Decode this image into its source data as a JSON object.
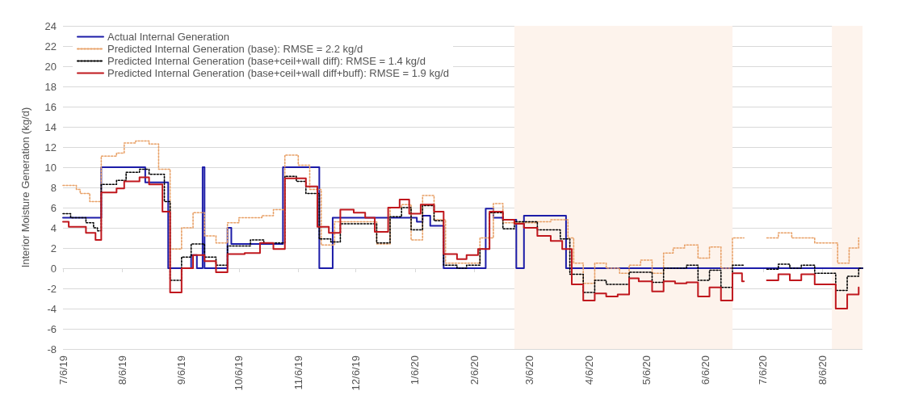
{
  "chart_data": {
    "type": "step",
    "ylabel": "Interior Moisture Generation (kg/d)",
    "xlim": [
      "2019-07-06",
      "2020-08-27"
    ],
    "xticks": [
      {
        "value": "2019-07-06",
        "label": "7/6/19"
      },
      {
        "value": "2019-08-06",
        "label": "8/6/19"
      },
      {
        "value": "2019-09-06",
        "label": "9/6/19"
      },
      {
        "value": "2019-10-06",
        "label": "10/6/19"
      },
      {
        "value": "2019-11-06",
        "label": "11/6/19"
      },
      {
        "value": "2019-12-06",
        "label": "12/6/19"
      },
      {
        "value": "2020-01-06",
        "label": "1/6/20"
      },
      {
        "value": "2020-02-06",
        "label": "2/6/20"
      },
      {
        "value": "2020-03-06",
        "label": "3/6/20"
      },
      {
        "value": "2020-04-06",
        "label": "4/6/20"
      },
      {
        "value": "2020-05-06",
        "label": "5/6/20"
      },
      {
        "value": "2020-06-06",
        "label": "6/6/20"
      },
      {
        "value": "2020-07-06",
        "label": "7/6/20"
      },
      {
        "value": "2020-08-06",
        "label": "8/6/20"
      }
    ],
    "ylim": [
      -8,
      24
    ],
    "yticks": [
      -8,
      -6,
      -4,
      -2,
      0,
      2,
      4,
      6,
      8,
      10,
      12,
      14,
      16,
      18,
      20,
      22,
      24
    ],
    "grid": "y",
    "legend": "top left",
    "marker": "none",
    "bands": [
      {
        "axis": "x",
        "from": "2020-02-27",
        "to": "2020-06-20",
        "color": "#fdf3ec"
      },
      {
        "axis": "x",
        "from": "2020-08-11",
        "to": "2020-08-27",
        "color": "#fdf3ec"
      }
    ],
    "series": [
      {
        "name": "Actual Internal Generation",
        "color": "#1c1ca8",
        "line_style": "solid",
        "x": [
          "2019-07-06",
          "2019-07-26",
          "2019-08-18",
          "2019-08-30",
          "2019-09-11",
          "2019-09-14",
          "2019-09-17",
          "2019-09-18",
          "2019-09-30",
          "2019-10-02",
          "2019-10-29",
          "2019-11-17",
          "2019-11-24",
          "2020-01-07",
          "2020-01-10",
          "2020-01-14",
          "2020-01-21",
          "2020-02-12",
          "2020-02-16",
          "2020-02-21",
          "2020-02-28",
          "2020-03-03",
          "2020-03-25",
          "2020-08-27"
        ],
        "values": [
          5,
          10,
          8.5,
          0,
          1.3,
          0,
          10,
          0,
          4,
          2.4,
          10,
          0,
          5,
          4.6,
          5.2,
          4.2,
          0,
          5.9,
          5,
          4.8,
          0,
          5.2,
          0,
          0
        ]
      },
      {
        "name": "Predicted Internal Generation (base): RMSE = 2.2 kg/d",
        "color": "#e8a066",
        "line_style": "dotted",
        "x": [
          "2019-07-06",
          "2019-07-13",
          "2019-07-15",
          "2019-07-20",
          "2019-07-26",
          "2019-08-03",
          "2019-08-07",
          "2019-08-13",
          "2019-08-20",
          "2019-08-25",
          "2019-08-31",
          "2019-09-06",
          "2019-09-12",
          "2019-09-18",
          "2019-09-24",
          "2019-09-30",
          "2019-10-06",
          "2019-10-18",
          "2019-10-24",
          "2019-10-30",
          "2019-11-06",
          "2019-11-12",
          "2019-11-18",
          "2019-11-25",
          "2019-12-17",
          "2019-12-24",
          "2019-12-30",
          "2020-01-04",
          "2020-01-10",
          "2020-01-16",
          "2020-01-22",
          "2020-02-09",
          "2020-02-16",
          "2020-02-21",
          "2020-03-10",
          "2020-03-17",
          "2020-03-26",
          "2020-03-29",
          "2020-04-03",
          "2020-04-09",
          "2020-04-15",
          "2020-04-22",
          "2020-04-27",
          "2020-05-03",
          "2020-05-09",
          "2020-05-15",
          "2020-05-20",
          "2020-05-26",
          "2020-06-02",
          "2020-06-08",
          "2020-06-14",
          "2020-06-20",
          "2020-06-25",
          "2020-06-26",
          "2020-07-08",
          "2020-07-14",
          "2020-07-21",
          "2020-08-02",
          "2020-08-14",
          "2020-08-20",
          "2020-08-25"
        ],
        "values": [
          8.2,
          7.8,
          7.4,
          6.6,
          11.1,
          11.4,
          12.4,
          12.6,
          12.3,
          9.8,
          1.9,
          4.0,
          5.5,
          3.2,
          2.5,
          4.5,
          5.0,
          5.2,
          5.8,
          11.2,
          10.2,
          7.8,
          2.3,
          4.6,
          2.4,
          6.0,
          6.3,
          2.8,
          7.2,
          4.8,
          0.5,
          3.0,
          6.4,
          4.5,
          4.6,
          4.8,
          3.0,
          0.5,
          -1.5,
          0.5,
          0,
          -0.5,
          0.3,
          0.8,
          -0.5,
          1.5,
          2.0,
          2.3,
          1.0,
          2.1,
          0,
          3.0,
          3.0,
          null,
          3.0,
          3.5,
          3.0,
          2.5,
          0.5,
          2.0,
          3.0
        ]
      },
      {
        "name": "Predicted Internal Generation (base+ceil+wall diff): RMSE = 1.4 kg/d",
        "color": "#000000",
        "line_style": "dotted",
        "x": [
          "2019-07-06",
          "2019-07-10",
          "2019-07-18",
          "2019-07-22",
          "2019-07-24",
          "2019-07-26",
          "2019-08-03",
          "2019-08-08",
          "2019-08-15",
          "2019-08-20",
          "2019-08-28",
          "2019-08-31",
          "2019-09-06",
          "2019-09-11",
          "2019-09-18",
          "2019-09-24",
          "2019-09-30",
          "2019-10-12",
          "2019-10-19",
          "2019-10-30",
          "2019-11-05",
          "2019-11-10",
          "2019-11-17",
          "2019-11-23",
          "2019-11-28",
          "2019-12-17",
          "2019-12-24",
          "2019-12-30",
          "2020-01-04",
          "2020-01-10",
          "2020-01-16",
          "2020-01-21",
          "2020-01-28",
          "2020-02-02",
          "2020-02-09",
          "2020-02-14",
          "2020-02-21",
          "2020-02-27",
          "2020-03-10",
          "2020-03-22",
          "2020-03-27",
          "2020-04-03",
          "2020-04-09",
          "2020-04-15",
          "2020-04-27",
          "2020-05-09",
          "2020-05-15",
          "2020-05-27",
          "2020-06-02",
          "2020-06-08",
          "2020-06-14",
          "2020-06-20",
          "2020-06-25",
          "2020-06-26",
          "2020-07-08",
          "2020-07-14",
          "2020-07-20",
          "2020-07-26",
          "2020-08-02",
          "2020-08-13",
          "2020-08-19",
          "2020-08-25",
          "2020-08-27"
        ],
        "values": [
          5.4,
          5.0,
          4.5,
          4.0,
          3.7,
          8.3,
          8.7,
          9.5,
          9.8,
          9.3,
          6.6,
          -1.2,
          1.1,
          2.4,
          1.1,
          0.3,
          2.2,
          2.8,
          2.5,
          9.1,
          8.6,
          7.4,
          2.9,
          2.6,
          4.4,
          2.5,
          5.1,
          6.0,
          3.8,
          6.2,
          4.7,
          0.3,
          0,
          0.3,
          1.9,
          5.5,
          3.9,
          4.6,
          3.8,
          2.9,
          -0.6,
          -2.4,
          -1.2,
          -1.6,
          -0.4,
          -1.4,
          0,
          0.3,
          -1.2,
          -0.2,
          -1.9,
          0.3,
          0.3,
          null,
          -0.1,
          0.4,
          0,
          0.3,
          -0.5,
          -2.2,
          -0.8,
          0,
          0
        ]
      },
      {
        "name": "Predicted Internal Generation (base+ceil+wall diff+buff): RMSE = 1.9 kg/d",
        "color": "#c0181e",
        "line_style": "solid",
        "x": [
          "2019-07-06",
          "2019-07-09",
          "2019-07-18",
          "2019-07-23",
          "2019-07-26",
          "2019-08-03",
          "2019-08-07",
          "2019-08-15",
          "2019-08-20",
          "2019-08-27",
          "2019-08-31",
          "2019-09-06",
          "2019-09-12",
          "2019-09-18",
          "2019-09-24",
          "2019-09-30",
          "2019-10-09",
          "2019-10-17",
          "2019-10-24",
          "2019-10-30",
          "2019-11-10",
          "2019-11-16",
          "2019-11-22",
          "2019-11-28",
          "2019-12-05",
          "2019-12-11",
          "2019-12-16",
          "2019-12-23",
          "2019-12-29",
          "2020-01-03",
          "2020-01-09",
          "2020-01-16",
          "2020-01-21",
          "2020-01-28",
          "2020-02-02",
          "2020-02-08",
          "2020-02-14",
          "2020-02-21",
          "2020-02-27",
          "2020-03-03",
          "2020-03-10",
          "2020-03-17",
          "2020-03-23",
          "2020-03-28",
          "2020-04-03",
          "2020-04-09",
          "2020-04-15",
          "2020-04-21",
          "2020-04-27",
          "2020-05-02",
          "2020-05-09",
          "2020-05-15",
          "2020-05-21",
          "2020-05-27",
          "2020-06-02",
          "2020-06-08",
          "2020-06-14",
          "2020-06-20",
          "2020-06-25",
          "2020-06-26",
          "2020-07-08",
          "2020-07-14",
          "2020-07-20",
          "2020-07-26",
          "2020-08-02",
          "2020-08-13",
          "2020-08-19",
          "2020-08-25"
        ],
        "values": [
          4.6,
          4.1,
          3.5,
          2.8,
          7.5,
          7.9,
          8.6,
          9.0,
          8.3,
          5.6,
          -2.4,
          0,
          1.3,
          0.7,
          -0.4,
          1.4,
          1.5,
          2.5,
          1.9,
          8.9,
          8.1,
          4.1,
          3.5,
          5.8,
          5.5,
          5.0,
          3.6,
          6.0,
          6.8,
          5.4,
          6.3,
          5.6,
          1.4,
          0.9,
          1.3,
          1.9,
          5.6,
          4.8,
          4.4,
          4.0,
          3.2,
          2.7,
          1.9,
          -1.6,
          -3.2,
          -2.5,
          -2.8,
          -2.6,
          -1.0,
          -1.3,
          -2.3,
          -1.3,
          -1.5,
          -1.4,
          -2.8,
          -1.9,
          -3.2,
          -0.5,
          -1.3,
          null,
          -1.2,
          -0.6,
          -1.2,
          -0.6,
          -1.6,
          -4.0,
          -2.6,
          -1.9
        ]
      }
    ]
  }
}
